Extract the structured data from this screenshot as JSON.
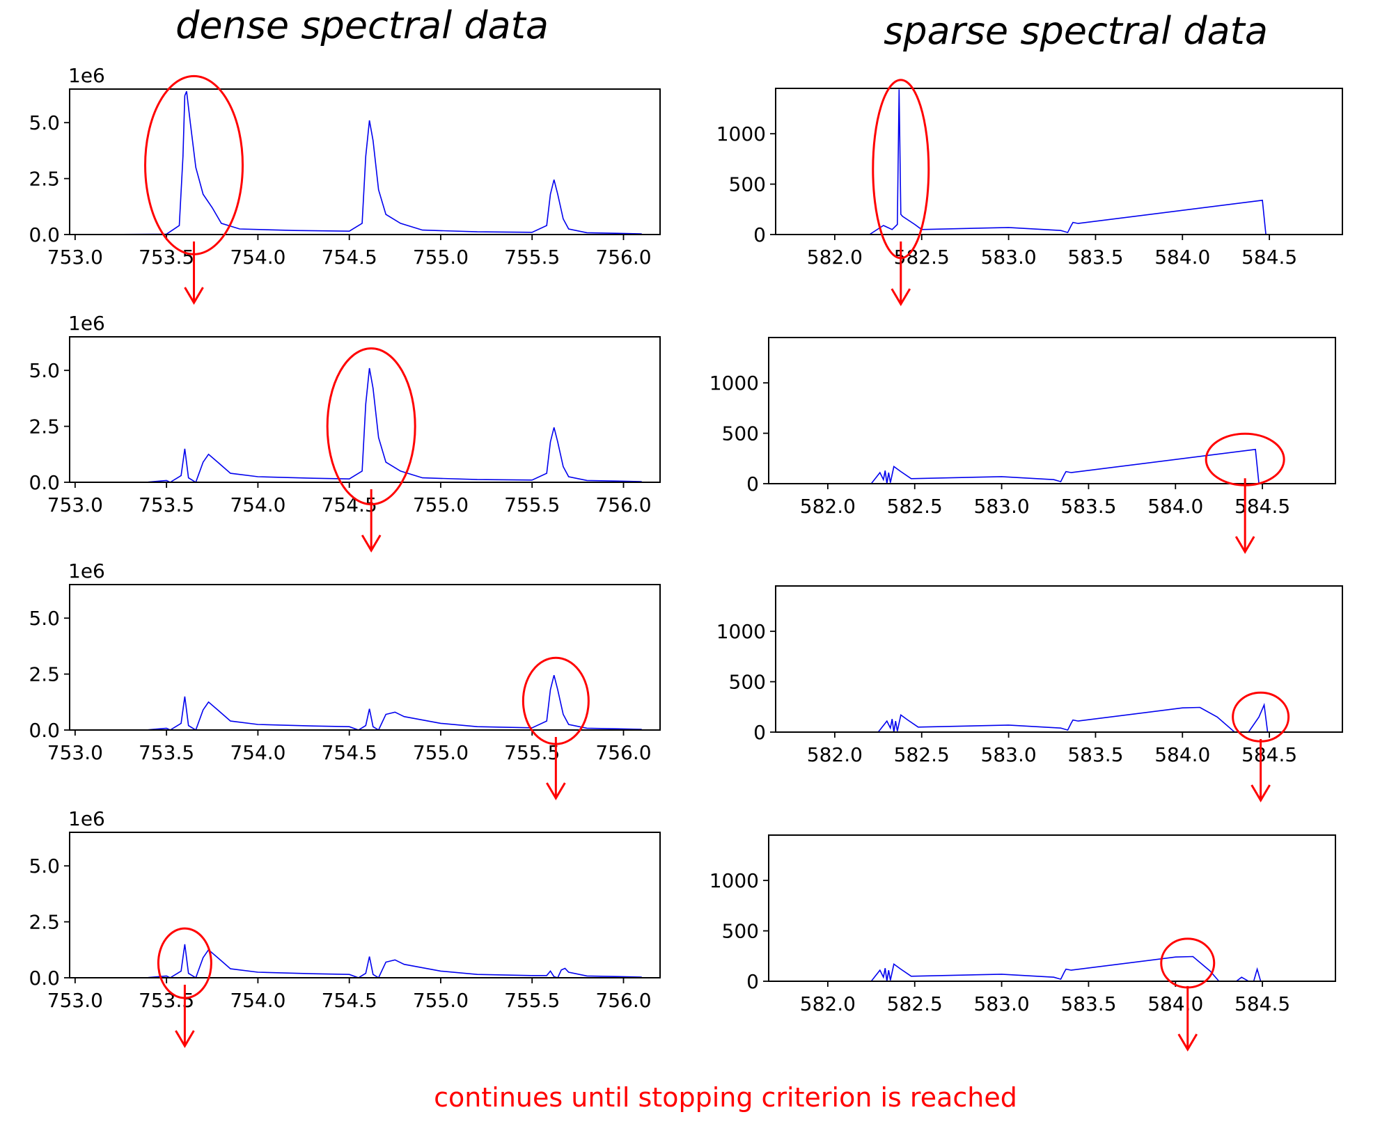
{
  "column_titles": {
    "left": "dense spectral data",
    "right": "sparse spectral data"
  },
  "footer_note": "continues until stopping criterion is reached",
  "colors": {
    "line": "#0000ee",
    "annotation": "#ff0000",
    "axes": "#000000"
  },
  "chart_data": [
    {
      "type": "line",
      "column": "dense spectral data",
      "step": 1,
      "xlim": [
        752.97,
        756.2
      ],
      "ylim": [
        0,
        6500000
      ],
      "y_offset_label": "1e6",
      "xticks": [
        753.0,
        753.5,
        754.0,
        754.5,
        755.0,
        755.5,
        756.0
      ],
      "xtick_labels": [
        "753.0",
        "753.5",
        "754.0",
        "754.5",
        "755.0",
        "755.5",
        "756.0"
      ],
      "yticks": [
        0,
        2500000,
        5000000
      ],
      "ytick_labels": [
        "0.0",
        "2.5",
        "5.0"
      ],
      "x": [
        753.1,
        753.5,
        753.57,
        753.59,
        753.6,
        753.61,
        753.63,
        753.66,
        753.7,
        753.75,
        753.8,
        753.9,
        754.2,
        754.5,
        754.57,
        754.59,
        754.61,
        754.63,
        754.66,
        754.7,
        754.78,
        754.9,
        755.2,
        755.5,
        755.58,
        755.6,
        755.62,
        755.64,
        755.67,
        755.7,
        755.8,
        756.1
      ],
      "y": [
        0,
        20000,
        400000,
        3500000,
        6200000,
        6400000,
        5000000,
        3000000,
        1800000,
        1200000,
        500000,
        250000,
        180000,
        150000,
        500000,
        3500000,
        5100000,
        4200000,
        2000000,
        900000,
        500000,
        200000,
        120000,
        100000,
        400000,
        1800000,
        2450000,
        1800000,
        700000,
        250000,
        80000,
        30000
      ],
      "highlight": {
        "cx": 753.65,
        "cy": 3100000,
        "label_x": 753.65
      }
    },
    {
      "type": "line",
      "column": "dense spectral data",
      "step": 2,
      "xlim": [
        752.97,
        756.2
      ],
      "ylim": [
        0,
        6500000
      ],
      "y_offset_label": "1e6",
      "xticks": [
        753.0,
        753.5,
        754.0,
        754.5,
        755.0,
        755.5,
        756.0
      ],
      "xtick_labels": [
        "753.0",
        "753.5",
        "754.0",
        "754.5",
        "755.0",
        "755.5",
        "756.0"
      ],
      "yticks": [
        0,
        2500000,
        5000000
      ],
      "ytick_labels": [
        "0.0",
        "2.5",
        "5.0"
      ],
      "x": [
        753.1,
        753.4,
        753.5,
        753.52,
        753.58,
        753.6,
        753.62,
        753.66,
        753.7,
        753.73,
        753.78,
        753.85,
        754.0,
        754.3,
        754.5,
        754.57,
        754.59,
        754.61,
        754.63,
        754.66,
        754.7,
        754.78,
        754.9,
        755.2,
        755.5,
        755.58,
        755.6,
        755.62,
        755.64,
        755.67,
        755.7,
        755.8,
        756.1
      ],
      "y": [
        0,
        10000,
        80000,
        0,
        300000,
        1500000,
        200000,
        0,
        900000,
        1250000,
        900000,
        400000,
        250000,
        180000,
        150000,
        500000,
        3500000,
        5100000,
        4200000,
        2000000,
        900000,
        500000,
        200000,
        120000,
        100000,
        400000,
        1800000,
        2450000,
        1800000,
        700000,
        250000,
        80000,
        30000
      ],
      "highlight": {
        "cx": 754.62,
        "cy": 2500000,
        "label_x": 754.62
      }
    },
    {
      "type": "line",
      "column": "dense spectral data",
      "step": 3,
      "xlim": [
        752.97,
        756.2
      ],
      "ylim": [
        0,
        6500000
      ],
      "y_offset_label": "1e6",
      "xticks": [
        753.0,
        753.5,
        754.0,
        754.5,
        755.0,
        755.5,
        756.0
      ],
      "xtick_labels": [
        "753.0",
        "753.5",
        "754.0",
        "754.5",
        "755.0",
        "755.5",
        "756.0"
      ],
      "yticks": [
        0,
        2500000,
        5000000
      ],
      "ytick_labels": [
        "0.0",
        "2.5",
        "5.0"
      ],
      "x": [
        753.1,
        753.4,
        753.5,
        753.52,
        753.58,
        753.6,
        753.62,
        753.66,
        753.7,
        753.73,
        753.78,
        753.85,
        754.0,
        754.3,
        754.5,
        754.55,
        754.59,
        754.61,
        754.63,
        754.66,
        754.7,
        754.75,
        754.8,
        755.0,
        755.2,
        755.5,
        755.58,
        755.6,
        755.62,
        755.64,
        755.67,
        755.7,
        755.8,
        756.1
      ],
      "y": [
        0,
        10000,
        80000,
        0,
        300000,
        1500000,
        200000,
        0,
        900000,
        1250000,
        900000,
        400000,
        250000,
        180000,
        150000,
        0,
        200000,
        950000,
        150000,
        0,
        700000,
        800000,
        600000,
        300000,
        150000,
        100000,
        400000,
        1800000,
        2450000,
        1800000,
        700000,
        250000,
        80000,
        30000
      ],
      "highlight": {
        "cx": 755.63,
        "cy": 1300000,
        "label_x": 755.63
      }
    },
    {
      "type": "line",
      "column": "dense spectral data",
      "step": 4,
      "xlim": [
        752.97,
        756.2
      ],
      "ylim": [
        0,
        6500000
      ],
      "y_offset_label": "1e6",
      "xticks": [
        753.0,
        753.5,
        754.0,
        754.5,
        755.0,
        755.5,
        756.0
      ],
      "xtick_labels": [
        "753.0",
        "753.5",
        "754.0",
        "754.5",
        "755.0",
        "755.5",
        "756.0"
      ],
      "yticks": [
        0,
        2500000,
        5000000
      ],
      "ytick_labels": [
        "0.0",
        "2.5",
        "5.0"
      ],
      "x": [
        753.1,
        753.4,
        753.5,
        753.52,
        753.58,
        753.6,
        753.62,
        753.66,
        753.7,
        753.73,
        753.78,
        753.85,
        754.0,
        754.3,
        754.5,
        754.55,
        754.59,
        754.61,
        754.63,
        754.66,
        754.7,
        754.75,
        754.8,
        755.0,
        755.2,
        755.5,
        755.58,
        755.6,
        755.62,
        755.64,
        755.66,
        755.68,
        755.7,
        755.8,
        756.1
      ],
      "y": [
        0,
        10000,
        80000,
        0,
        300000,
        1500000,
        200000,
        0,
        900000,
        1250000,
        900000,
        400000,
        250000,
        180000,
        150000,
        0,
        200000,
        950000,
        150000,
        0,
        700000,
        800000,
        600000,
        300000,
        150000,
        100000,
        100000,
        300000,
        50000,
        0,
        350000,
        420000,
        250000,
        80000,
        30000
      ],
      "highlight": {
        "cx": 753.6,
        "cy": 650000,
        "label_x": 753.6
      }
    },
    {
      "type": "line",
      "column": "sparse spectral data",
      "step": 1,
      "xlim": [
        581.66,
        584.92
      ],
      "ylim": [
        0,
        1450
      ],
      "y_offset_label": "",
      "xticks": [
        582.0,
        582.5,
        583.0,
        583.5,
        584.0,
        584.5
      ],
      "xtick_labels": [
        "582.0",
        "582.5",
        "583.0",
        "583.5",
        "584.0",
        "584.5"
      ],
      "yticks": [
        0,
        500,
        1000
      ],
      "ytick_labels": [
        "0",
        "500",
        "1000"
      ],
      "x": [
        581.8,
        582.2,
        582.28,
        582.33,
        582.36,
        582.37,
        582.38,
        582.39,
        582.46,
        582.5,
        583.0,
        583.3,
        583.34,
        583.36,
        583.37,
        583.4,
        584.46,
        584.48,
        584.88
      ],
      "y": [
        0,
        0,
        90,
        50,
        100,
        1440,
        200,
        180,
        100,
        50,
        70,
        40,
        20,
        90,
        120,
        110,
        340,
        0,
        0
      ],
      "highlight": {
        "cx": 582.38,
        "cy": 650,
        "label_x": 582.38
      }
    },
    {
      "type": "line",
      "column": "sparse spectral data",
      "step": 2,
      "xlim": [
        581.66,
        584.92
      ],
      "ylim": [
        0,
        1450
      ],
      "y_offset_label": "",
      "xticks": [
        582.0,
        582.5,
        583.0,
        583.5,
        584.0,
        584.5
      ],
      "xtick_labels": [
        "582.0",
        "582.5",
        "583.0",
        "583.5",
        "584.0",
        "584.5"
      ],
      "yticks": [
        0,
        500,
        1000
      ],
      "ytick_labels": [
        "0",
        "500",
        "1000"
      ],
      "x": [
        581.8,
        582.25,
        582.3,
        582.32,
        582.33,
        582.34,
        582.35,
        582.36,
        582.38,
        582.42,
        582.48,
        583.0,
        583.3,
        583.34,
        583.36,
        583.37,
        583.4,
        584.46,
        584.48,
        584.88
      ],
      "y": [
        0,
        0,
        110,
        40,
        130,
        0,
        110,
        10,
        170,
        120,
        50,
        70,
        40,
        20,
        90,
        120,
        110,
        340,
        0,
        0
      ],
      "highlight": {
        "cx": 584.4,
        "cy": 240,
        "label_x": 584.4
      }
    },
    {
      "type": "line",
      "column": "sparse spectral data",
      "step": 3,
      "xlim": [
        581.66,
        584.92
      ],
      "ylim": [
        0,
        1450
      ],
      "y_offset_label": "",
      "xticks": [
        582.0,
        582.5,
        583.0,
        583.5,
        584.0,
        584.5
      ],
      "xtick_labels": [
        "582.0",
        "582.5",
        "583.0",
        "583.5",
        "584.0",
        "584.5"
      ],
      "yticks": [
        0,
        500,
        1000
      ],
      "ytick_labels": [
        "0",
        "500",
        "1000"
      ],
      "x": [
        581.8,
        582.25,
        582.3,
        582.32,
        582.33,
        582.34,
        582.35,
        582.36,
        582.38,
        582.42,
        582.48,
        583.0,
        583.3,
        583.34,
        583.36,
        583.37,
        583.4,
        584.0,
        584.1,
        584.2,
        584.3,
        584.38,
        584.44,
        584.47,
        584.49,
        584.88
      ],
      "y": [
        0,
        0,
        110,
        40,
        130,
        0,
        110,
        10,
        170,
        120,
        50,
        70,
        40,
        20,
        90,
        120,
        110,
        240,
        245,
        150,
        0,
        0,
        150,
        270,
        0,
        0
      ],
      "highlight": {
        "cx": 584.45,
        "cy": 150,
        "label_x": 584.45
      }
    },
    {
      "type": "line",
      "column": "sparse spectral data",
      "step": 4,
      "xlim": [
        581.66,
        584.92
      ],
      "ylim": [
        0,
        1450
      ],
      "y_offset_label": "",
      "xticks": [
        582.0,
        582.5,
        583.0,
        583.5,
        584.0,
        584.5
      ],
      "xtick_labels": [
        "582.0",
        "582.5",
        "583.0",
        "583.5",
        "584.0",
        "584.5"
      ],
      "yticks": [
        0,
        500,
        1000
      ],
      "ytick_labels": [
        "0",
        "500",
        "1000"
      ],
      "x": [
        581.8,
        582.25,
        582.3,
        582.32,
        582.33,
        582.34,
        582.35,
        582.36,
        582.38,
        582.42,
        582.48,
        583.0,
        583.3,
        583.34,
        583.36,
        583.37,
        583.4,
        584.0,
        584.1,
        584.2,
        584.25,
        584.35,
        584.38,
        584.42,
        584.45,
        584.47,
        584.49,
        584.88
      ],
      "y": [
        0,
        0,
        110,
        40,
        130,
        0,
        110,
        10,
        170,
        120,
        50,
        70,
        40,
        20,
        90,
        120,
        110,
        240,
        245,
        100,
        0,
        0,
        40,
        0,
        0,
        120,
        0,
        0
      ],
      "highlight": {
        "cx": 584.07,
        "cy": 180,
        "label_x": 584.07
      }
    }
  ]
}
